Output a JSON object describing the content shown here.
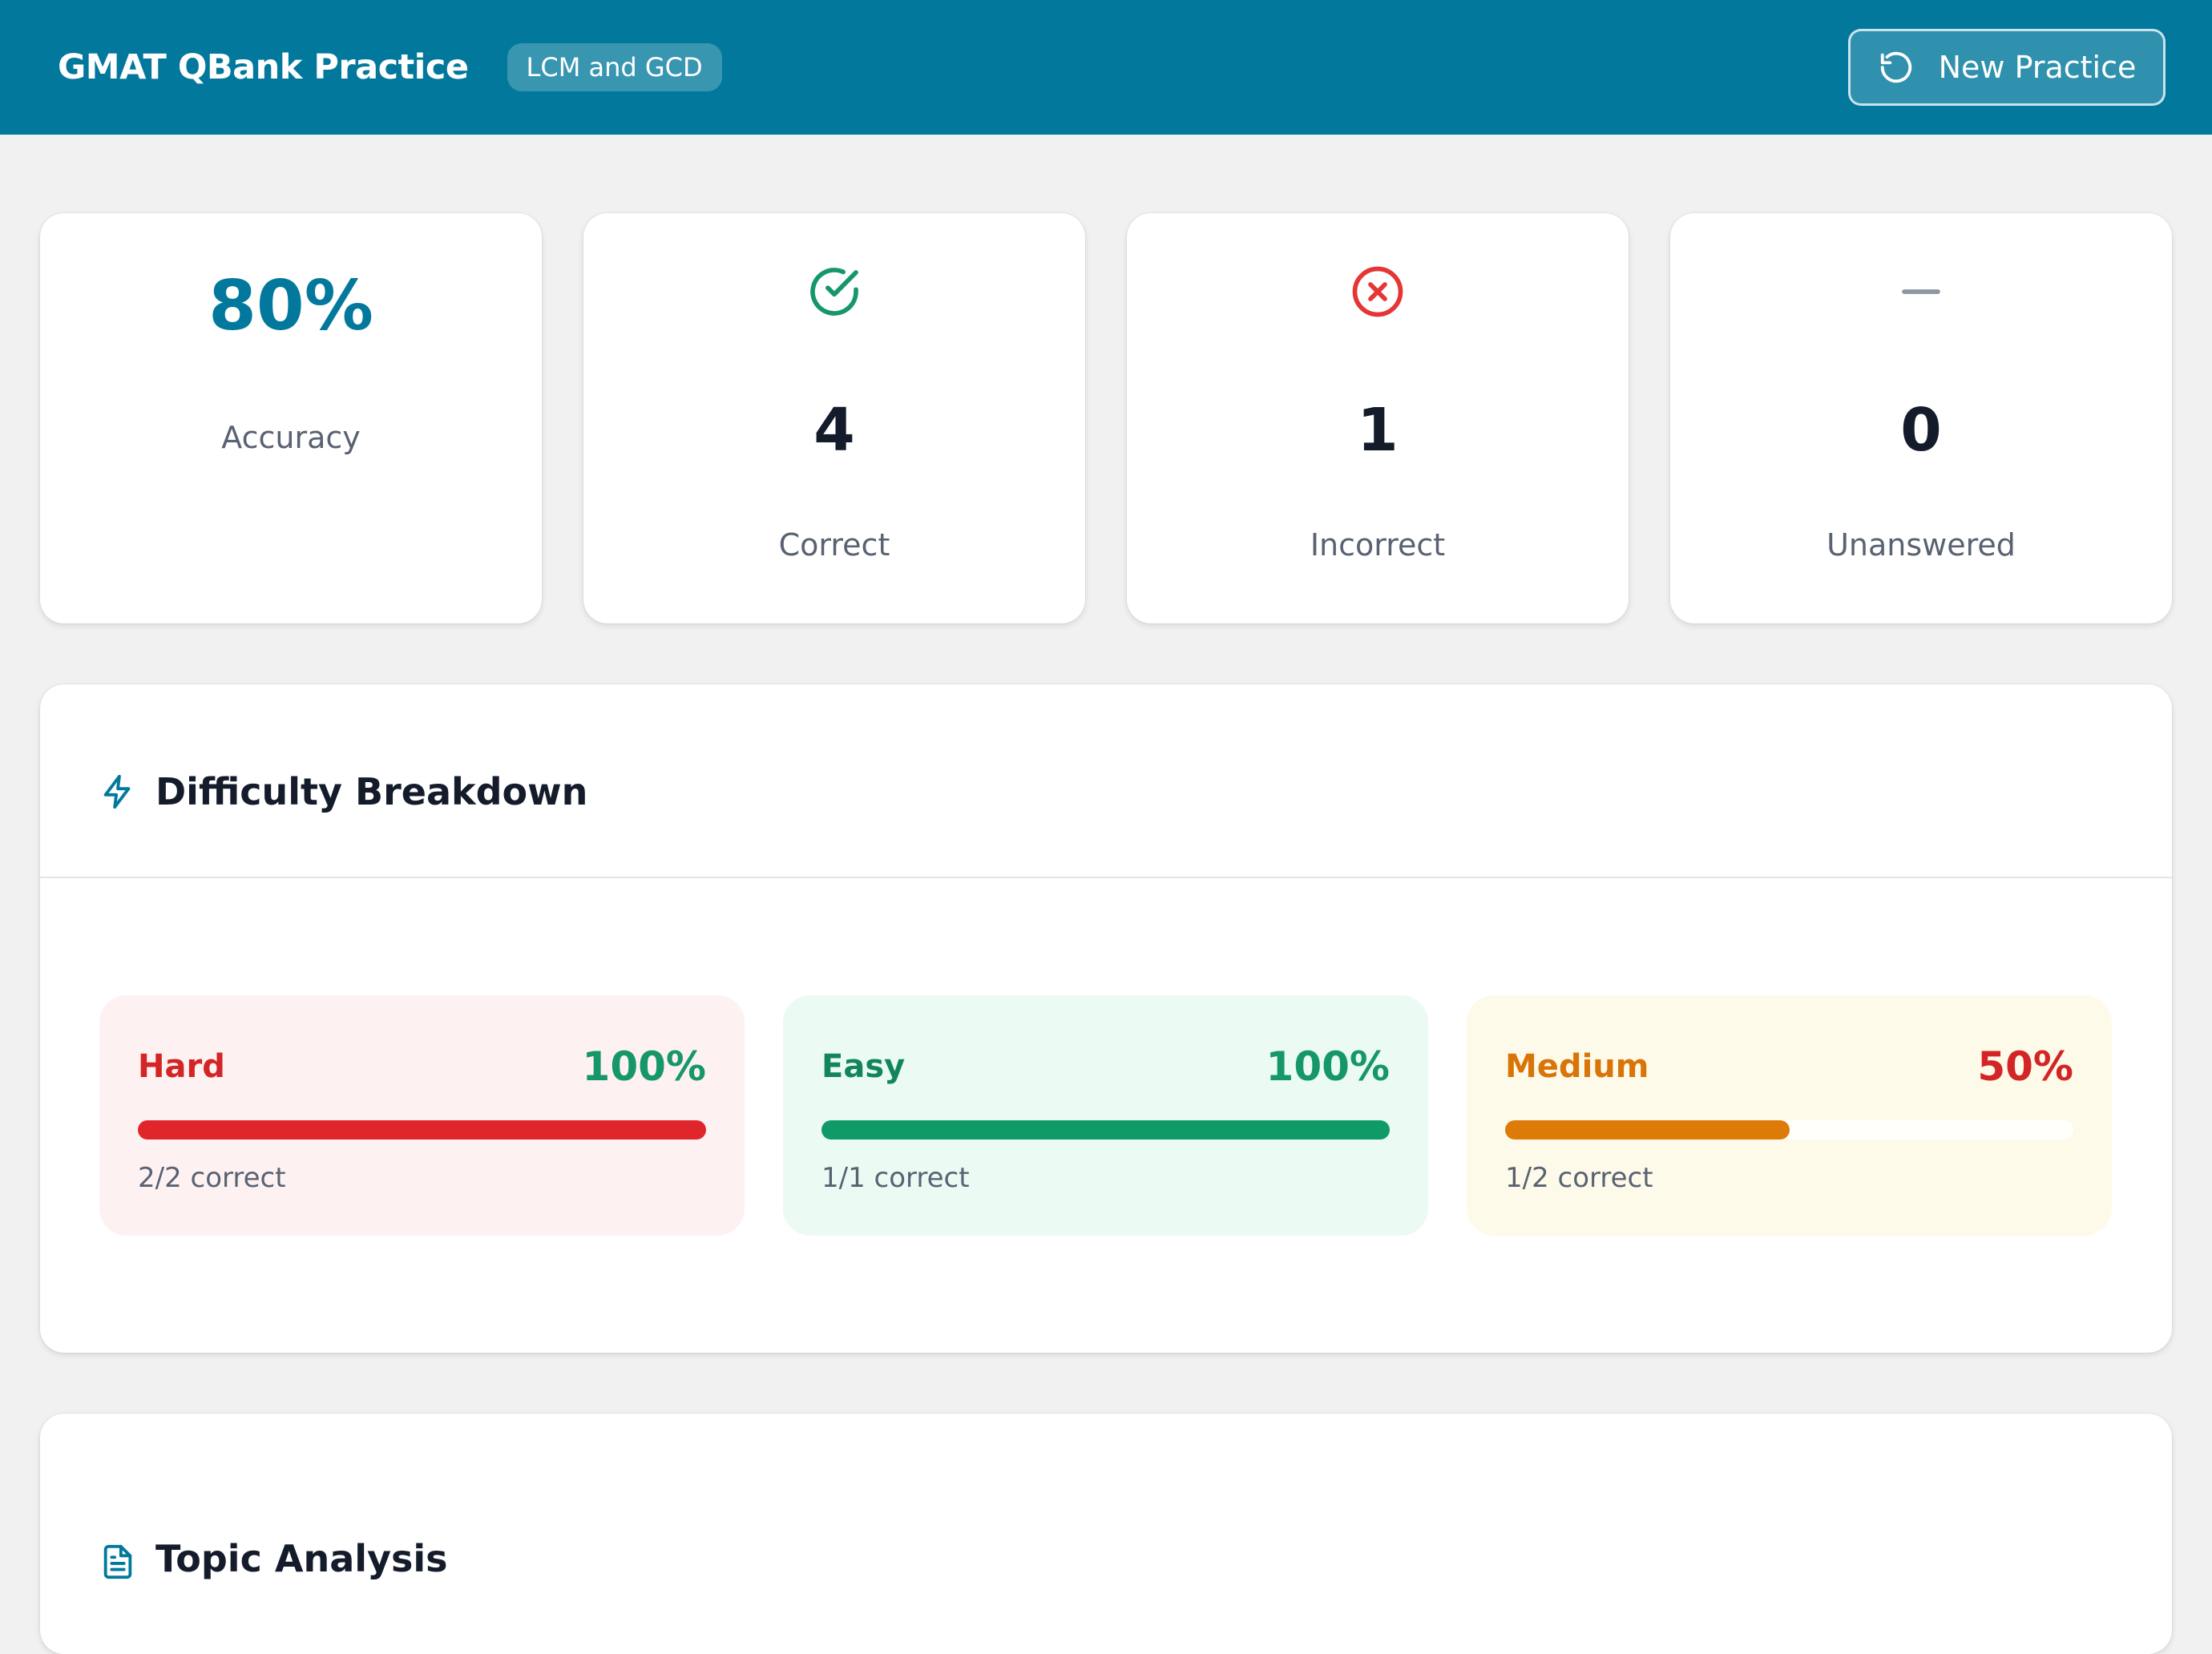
{
  "header": {
    "title": "GMAT QBank Practice",
    "topic_badge": "LCM and GCD",
    "new_practice_label": "New Practice"
  },
  "stats": {
    "accuracy": {
      "value": "80%",
      "label": "Accuracy"
    },
    "correct": {
      "value": "4",
      "label": "Correct",
      "icon": "check-circle-icon",
      "color": "#16976a"
    },
    "incorrect": {
      "value": "1",
      "label": "Incorrect",
      "icon": "x-circle-icon",
      "color": "#e53535"
    },
    "unanswered": {
      "value": "0",
      "label": "Unanswered",
      "icon": "minus-icon",
      "color": "#8d96a3"
    }
  },
  "difficulty": {
    "title": "Difficulty Breakdown",
    "items": [
      {
        "name": "Hard",
        "percent_text": "100%",
        "percent": 100,
        "note": "2/2 correct",
        "color": "#e0262b",
        "name_color": "#d32526",
        "pct_color": "#16976a"
      },
      {
        "name": "Easy",
        "percent_text": "100%",
        "percent": 100,
        "note": "1/1 correct",
        "color": "#109a68",
        "name_color": "#12855c",
        "pct_color": "#16976a"
      },
      {
        "name": "Medium",
        "percent_text": "50%",
        "percent": 50,
        "note": "1/2 correct",
        "color": "#de7a08",
        "name_color": "#d97508",
        "pct_color": "#d32526"
      }
    ]
  },
  "topics": {
    "title": "Topic Analysis"
  },
  "colors": {
    "brand": "#02799c",
    "background": "#f1f1f1"
  }
}
